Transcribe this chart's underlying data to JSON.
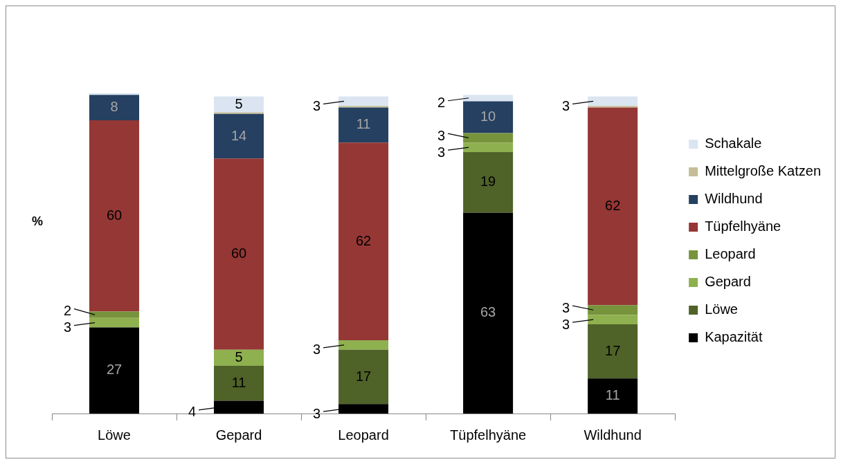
{
  "chart_data": {
    "type": "bar",
    "stacked": true,
    "ylabel": "%",
    "legend": "right",
    "grid": false,
    "categories": [
      "Löwe",
      "Gepard",
      "Leopard",
      "Tüpfelhyäne",
      "Wildhund"
    ],
    "series": [
      {
        "name": "Kapazität",
        "color": "#000000",
        "values": [
          27,
          4,
          3,
          63,
          11
        ],
        "value_labels": [
          "27",
          "4",
          "3",
          "63",
          "11"
        ]
      },
      {
        "name": "Löwe",
        "color": "#4f6228",
        "values": [
          0,
          11,
          17,
          19,
          17
        ],
        "value_labels": [
          null,
          "11",
          "17",
          "19",
          "17"
        ]
      },
      {
        "name": "Gepard",
        "color": "#8fb04f",
        "values": [
          3,
          5,
          3,
          3,
          3
        ],
        "value_labels": [
          "3",
          "5",
          "3",
          "3",
          "3"
        ]
      },
      {
        "name": "Leopard",
        "color": "#77933c",
        "values": [
          2,
          0,
          0,
          3,
          3
        ],
        "value_labels": [
          "2",
          null,
          null,
          "3",
          "3"
        ]
      },
      {
        "name": "Tüpfelhyäne",
        "color": "#953735",
        "values": [
          60,
          60,
          62,
          0,
          62
        ],
        "value_labels": [
          "60",
          "60",
          "62",
          null,
          "62"
        ]
      },
      {
        "name": "Wildhund",
        "color": "#254061",
        "values": [
          8,
          14,
          11,
          10,
          0
        ],
        "value_labels": [
          "8",
          "14",
          "11",
          "10",
          null
        ]
      },
      {
        "name": "Mittelgroße Katzen",
        "color": "#c4bd97",
        "values": [
          0,
          0.5,
          0.5,
          0,
          0.5
        ],
        "value_labels": [
          null,
          null,
          null,
          null,
          null
        ]
      },
      {
        "name": "Schakale",
        "color": "#dbe5f1",
        "values": [
          0.5,
          5,
          3,
          2,
          3
        ],
        "value_labels": [
          null,
          "5",
          "3",
          "2",
          "3"
        ]
      }
    ]
  }
}
